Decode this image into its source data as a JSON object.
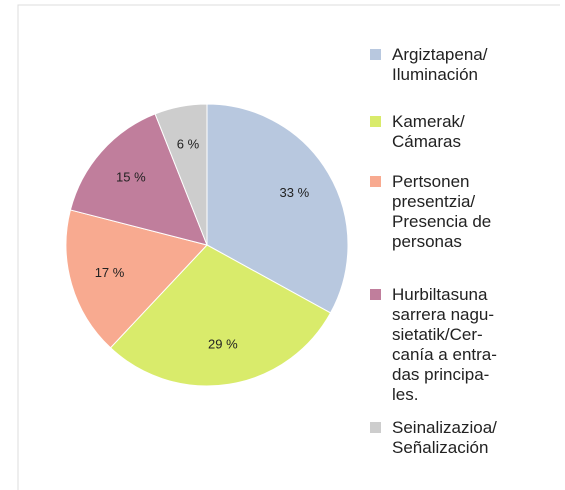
{
  "chart_data": {
    "type": "pie",
    "categories": [
      "Argiztapena/\nIluminación",
      "Kamerak/\nCámaras",
      "Pertsonen\npresentzia/\nPresencia de\npersonas",
      "Hurbiltasuna\nsarrera nagu-\nsietatik/Cer-\ncanía a entra-\ndas principa-\nles.",
      "Seinalizazioa/\nSeñalización"
    ],
    "values": [
      33,
      29,
      17,
      15,
      6
    ],
    "value_labels": [
      "33 %",
      "29 %",
      "17 %",
      "15 %",
      "6 %"
    ],
    "colors": [
      "#b8c8df",
      "#d9eb6b",
      "#f8aa90",
      "#c07e9c",
      "#cdcdcd"
    ]
  }
}
